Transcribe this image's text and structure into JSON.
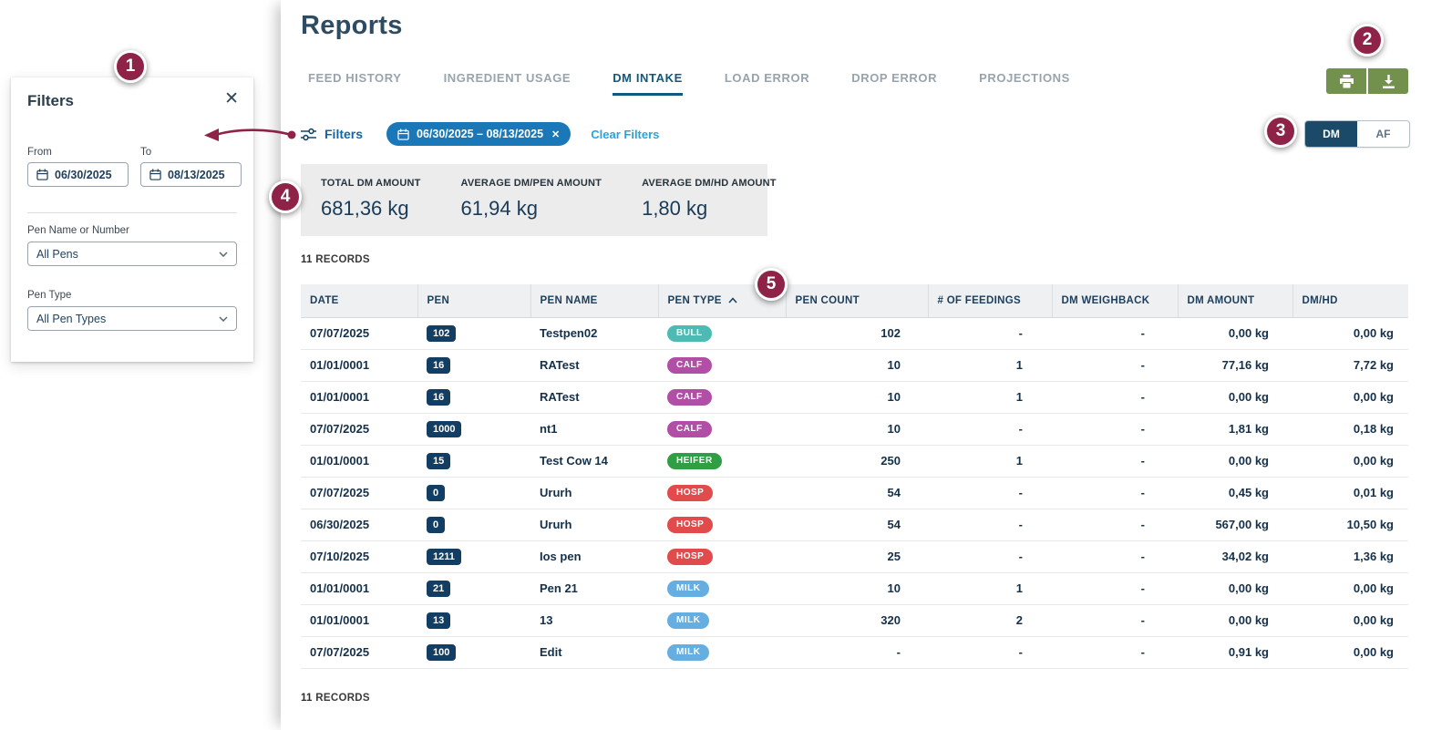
{
  "filters_panel": {
    "title": "Filters",
    "from": {
      "label": "From",
      "value": "06/30/2025"
    },
    "to": {
      "label": "To",
      "value": "08/13/2025"
    },
    "pen_name": {
      "label": "Pen Name or Number",
      "value": "All Pens"
    },
    "pen_type": {
      "label": "Pen Type",
      "value": "All Pen Types"
    }
  },
  "header": {
    "title": "Reports",
    "tabs": [
      {
        "label": "FEED HISTORY",
        "active": false
      },
      {
        "label": "INGREDIENT USAGE",
        "active": false
      },
      {
        "label": "DM INTAKE",
        "active": true
      },
      {
        "label": "LOAD ERROR",
        "active": false
      },
      {
        "label": "DROP ERROR",
        "active": false
      },
      {
        "label": "PROJECTIONS",
        "active": false
      }
    ]
  },
  "toolbar": {
    "button_color": "#71914d",
    "buttons": [
      "print",
      "download"
    ]
  },
  "filter_bar": {
    "label": "Filters",
    "date_chip": {
      "text": "06/30/2025 – 08/13/2025"
    },
    "clear": "Clear Filters",
    "unit_toggle": {
      "options": [
        "DM",
        "AF"
      ],
      "selected": "DM"
    }
  },
  "summary": {
    "items": [
      {
        "label": "TOTAL DM AMOUNT",
        "value": "681,36 kg"
      },
      {
        "label": "AVERAGE DM/PEN AMOUNT",
        "value": "61,94 kg"
      },
      {
        "label": "AVERAGE DM/HD AMOUNT",
        "value": "1,80 kg"
      }
    ]
  },
  "records": {
    "count": "11",
    "label": "RECORDS"
  },
  "table": {
    "columns": [
      {
        "label": "DATE"
      },
      {
        "label": "PEN"
      },
      {
        "label": "PEN NAME"
      },
      {
        "label": "PEN TYPE",
        "sorted": "asc"
      },
      {
        "label": "PEN COUNT"
      },
      {
        "label": "# OF FEEDINGS"
      },
      {
        "label": "DM WEIGHBACK"
      },
      {
        "label": "DM AMOUNT"
      },
      {
        "label": "DM/HD"
      }
    ],
    "pen_type_colors": {
      "BULL": "#4dbbb3",
      "CALF": "#b14fa6",
      "HEIFER": "#2f9e44",
      "HOSP": "#e14b4b",
      "MILK": "#64aee2"
    },
    "rows": [
      {
        "date": "07/07/2025",
        "pen": "102",
        "pen_name": "Testpen02",
        "pen_type": "BULL",
        "pen_count": "102",
        "feedings": "-",
        "weighback": "-",
        "dm_amount": "0,00 kg",
        "dm_hd": "0,00 kg"
      },
      {
        "date": "01/01/0001",
        "pen": "16",
        "pen_name": "RATest",
        "pen_type": "CALF",
        "pen_count": "10",
        "feedings": "1",
        "weighback": "-",
        "dm_amount": "77,16 kg",
        "dm_hd": "7,72 kg"
      },
      {
        "date": "01/01/0001",
        "pen": "16",
        "pen_name": "RATest",
        "pen_type": "CALF",
        "pen_count": "10",
        "feedings": "1",
        "weighback": "-",
        "dm_amount": "0,00 kg",
        "dm_hd": "0,00 kg"
      },
      {
        "date": "07/07/2025",
        "pen": "1000",
        "pen_name": "nt1",
        "pen_type": "CALF",
        "pen_count": "10",
        "feedings": "-",
        "weighback": "-",
        "dm_amount": "1,81 kg",
        "dm_hd": "0,18 kg"
      },
      {
        "date": "01/01/0001",
        "pen": "15",
        "pen_name": "Test Cow 14",
        "pen_type": "HEIFER",
        "pen_count": "250",
        "feedings": "1",
        "weighback": "-",
        "dm_amount": "0,00 kg",
        "dm_hd": "0,00 kg"
      },
      {
        "date": "07/07/2025",
        "pen": "0",
        "pen_name": "Ururh",
        "pen_type": "HOSP",
        "pen_count": "54",
        "feedings": "-",
        "weighback": "-",
        "dm_amount": "0,45 kg",
        "dm_hd": "0,01 kg"
      },
      {
        "date": "06/30/2025",
        "pen": "0",
        "pen_name": "Ururh",
        "pen_type": "HOSP",
        "pen_count": "54",
        "feedings": "-",
        "weighback": "-",
        "dm_amount": "567,00 kg",
        "dm_hd": "10,50 kg"
      },
      {
        "date": "07/10/2025",
        "pen": "1211",
        "pen_name": "Ios pen",
        "pen_type": "HOSP",
        "pen_count": "25",
        "feedings": "-",
        "weighback": "-",
        "dm_amount": "34,02 kg",
        "dm_hd": "1,36 kg"
      },
      {
        "date": "01/01/0001",
        "pen": "21",
        "pen_name": "Pen 21",
        "pen_type": "MILK",
        "pen_count": "10",
        "feedings": "1",
        "weighback": "-",
        "dm_amount": "0,00 kg",
        "dm_hd": "0,00 kg"
      },
      {
        "date": "01/01/0001",
        "pen": "13",
        "pen_name": "13",
        "pen_type": "MILK",
        "pen_count": "320",
        "feedings": "2",
        "weighback": "-",
        "dm_amount": "0,00 kg",
        "dm_hd": "0,00 kg"
      },
      {
        "date": "07/07/2025",
        "pen": "100",
        "pen_name": "Edit",
        "pen_type": "MILK",
        "pen_count": "-",
        "feedings": "-",
        "weighback": "-",
        "dm_amount": "0,91 kg",
        "dm_hd": "0,00 kg"
      }
    ]
  },
  "annotations": {
    "color": "#8f2247",
    "badges": [
      "1",
      "2",
      "3",
      "4",
      "5"
    ]
  }
}
